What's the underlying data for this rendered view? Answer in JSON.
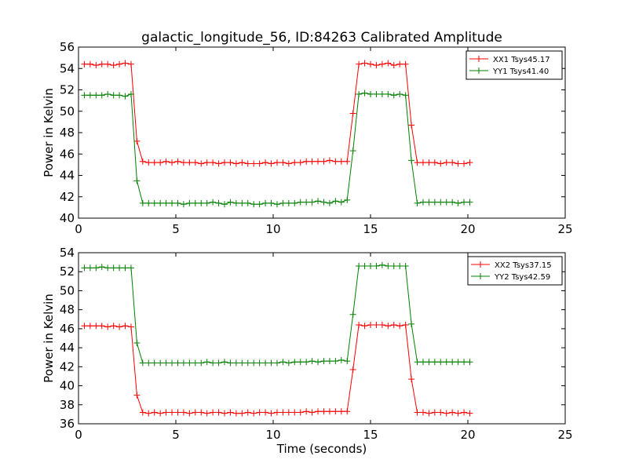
{
  "chart_data": [
    {
      "type": "line",
      "title": "galactic_longitude_56, ID:84263 Calibrated Amplitude",
      "xlabel": "",
      "ylabel": "Power in Kelvin",
      "xlim": [
        0,
        25
      ],
      "ylim": [
        40,
        56
      ],
      "xticks": [
        "0",
        "5",
        "10",
        "15",
        "20",
        "25"
      ],
      "yticks": [
        "40",
        "42",
        "44",
        "46",
        "48",
        "50",
        "52",
        "54",
        "56"
      ],
      "grid": false,
      "legend_position": "top-right",
      "series": [
        {
          "name": "XX1 Tsys45.17",
          "color": "#ff0000",
          "x": [
            0.3,
            0.6,
            0.9,
            1.2,
            1.5,
            1.8,
            2.1,
            2.4,
            2.7,
            3.0,
            3.3,
            3.6,
            3.9,
            4.2,
            4.5,
            4.8,
            5.1,
            5.4,
            5.7,
            6.0,
            6.3,
            6.6,
            6.9,
            7.2,
            7.5,
            7.8,
            8.1,
            8.4,
            8.7,
            9.0,
            9.3,
            9.6,
            9.9,
            10.2,
            10.5,
            10.8,
            11.1,
            11.4,
            11.7,
            12.0,
            12.3,
            12.6,
            12.9,
            13.2,
            13.5,
            13.8,
            14.1,
            14.4,
            14.7,
            15.0,
            15.3,
            15.6,
            15.9,
            16.2,
            16.5,
            16.8,
            17.1,
            17.4,
            17.7,
            18.0,
            18.3,
            18.6,
            18.9,
            19.2,
            19.5,
            19.8,
            20.1
          ],
          "y": [
            54.4,
            54.4,
            54.3,
            54.4,
            54.4,
            54.3,
            54.4,
            54.5,
            54.4,
            47.2,
            45.3,
            45.2,
            45.2,
            45.2,
            45.3,
            45.2,
            45.3,
            45.2,
            45.2,
            45.2,
            45.1,
            45.2,
            45.2,
            45.1,
            45.2,
            45.2,
            45.1,
            45.2,
            45.1,
            45.1,
            45.1,
            45.2,
            45.1,
            45.2,
            45.2,
            45.1,
            45.2,
            45.2,
            45.3,
            45.3,
            45.3,
            45.3,
            45.4,
            45.3,
            45.3,
            45.3,
            49.8,
            54.4,
            54.5,
            54.4,
            54.3,
            54.4,
            54.5,
            54.3,
            54.4,
            54.4,
            48.7,
            45.2,
            45.2,
            45.2,
            45.2,
            45.1,
            45.2,
            45.2,
            45.1,
            45.1,
            45.2
          ]
        },
        {
          "name": "YY1 Tsys41.40",
          "color": "#008000",
          "x": [
            0.3,
            0.6,
            0.9,
            1.2,
            1.5,
            1.8,
            2.1,
            2.4,
            2.7,
            3.0,
            3.3,
            3.6,
            3.9,
            4.2,
            4.5,
            4.8,
            5.1,
            5.4,
            5.7,
            6.0,
            6.3,
            6.6,
            6.9,
            7.2,
            7.5,
            7.8,
            8.1,
            8.4,
            8.7,
            9.0,
            9.3,
            9.6,
            9.9,
            10.2,
            10.5,
            10.8,
            11.1,
            11.4,
            11.7,
            12.0,
            12.3,
            12.6,
            12.9,
            13.2,
            13.5,
            13.8,
            14.1,
            14.4,
            14.7,
            15.0,
            15.3,
            15.6,
            15.9,
            16.2,
            16.5,
            16.8,
            17.1,
            17.4,
            17.7,
            18.0,
            18.3,
            18.6,
            18.9,
            19.2,
            19.5,
            19.8,
            20.1
          ],
          "y": [
            51.5,
            51.5,
            51.5,
            51.5,
            51.6,
            51.5,
            51.5,
            51.4,
            51.6,
            43.5,
            41.4,
            41.4,
            41.4,
            41.4,
            41.4,
            41.4,
            41.4,
            41.3,
            41.4,
            41.4,
            41.4,
            41.4,
            41.5,
            41.4,
            41.3,
            41.5,
            41.4,
            41.4,
            41.4,
            41.3,
            41.3,
            41.4,
            41.4,
            41.3,
            41.4,
            41.4,
            41.4,
            41.5,
            41.5,
            41.5,
            41.6,
            41.5,
            41.4,
            41.6,
            41.5,
            41.7,
            46.3,
            51.6,
            51.7,
            51.6,
            51.6,
            51.6,
            51.6,
            51.5,
            51.6,
            51.5,
            45.4,
            41.4,
            41.5,
            41.5,
            41.5,
            41.5,
            41.5,
            41.5,
            41.4,
            41.5,
            41.5
          ]
        }
      ]
    },
    {
      "type": "line",
      "title": "",
      "xlabel": "Time (seconds)",
      "ylabel": "Power in Kelvin",
      "xlim": [
        0,
        25
      ],
      "ylim": [
        36,
        54
      ],
      "xticks": [
        "0",
        "5",
        "10",
        "15",
        "20",
        "25"
      ],
      "yticks": [
        "36",
        "38",
        "40",
        "42",
        "44",
        "46",
        "48",
        "50",
        "52",
        "54"
      ],
      "grid": false,
      "legend_position": "top-right",
      "series": [
        {
          "name": "XX2 Tsys37.15",
          "color": "#ff0000",
          "x": [
            0.3,
            0.6,
            0.9,
            1.2,
            1.5,
            1.8,
            2.1,
            2.4,
            2.7,
            3.0,
            3.3,
            3.6,
            3.9,
            4.2,
            4.5,
            4.8,
            5.1,
            5.4,
            5.7,
            6.0,
            6.3,
            6.6,
            6.9,
            7.2,
            7.5,
            7.8,
            8.1,
            8.4,
            8.7,
            9.0,
            9.3,
            9.6,
            9.9,
            10.2,
            10.5,
            10.8,
            11.1,
            11.4,
            11.7,
            12.0,
            12.3,
            12.6,
            12.9,
            13.2,
            13.5,
            13.8,
            14.1,
            14.4,
            14.7,
            15.0,
            15.3,
            15.6,
            15.9,
            16.2,
            16.5,
            16.8,
            17.1,
            17.4,
            17.7,
            18.0,
            18.3,
            18.6,
            18.9,
            19.2,
            19.5,
            19.8,
            20.1
          ],
          "y": [
            46.3,
            46.3,
            46.3,
            46.3,
            46.2,
            46.3,
            46.2,
            46.3,
            46.2,
            39.0,
            37.2,
            37.1,
            37.2,
            37.1,
            37.2,
            37.2,
            37.2,
            37.2,
            37.1,
            37.2,
            37.2,
            37.1,
            37.2,
            37.2,
            37.1,
            37.2,
            37.1,
            37.1,
            37.2,
            37.1,
            37.2,
            37.2,
            37.1,
            37.2,
            37.2,
            37.2,
            37.2,
            37.2,
            37.3,
            37.2,
            37.3,
            37.3,
            37.3,
            37.3,
            37.3,
            37.3,
            41.7,
            46.4,
            46.3,
            46.4,
            46.4,
            46.4,
            46.3,
            46.4,
            46.3,
            46.4,
            40.7,
            37.2,
            37.2,
            37.1,
            37.2,
            37.2,
            37.1,
            37.2,
            37.1,
            37.2,
            37.1
          ]
        },
        {
          "name": "YY2 Tsys42.59",
          "color": "#008000",
          "x": [
            0.3,
            0.6,
            0.9,
            1.2,
            1.5,
            1.8,
            2.1,
            2.4,
            2.7,
            3.0,
            3.3,
            3.6,
            3.9,
            4.2,
            4.5,
            4.8,
            5.1,
            5.4,
            5.7,
            6.0,
            6.3,
            6.6,
            6.9,
            7.2,
            7.5,
            7.8,
            8.1,
            8.4,
            8.7,
            9.0,
            9.3,
            9.6,
            9.9,
            10.2,
            10.5,
            10.8,
            11.1,
            11.4,
            11.7,
            12.0,
            12.3,
            12.6,
            12.9,
            13.2,
            13.5,
            13.8,
            14.1,
            14.4,
            14.7,
            15.0,
            15.3,
            15.6,
            15.9,
            16.2,
            16.5,
            16.8,
            17.1,
            17.4,
            17.7,
            18.0,
            18.3,
            18.6,
            18.9,
            19.2,
            19.5,
            19.8,
            20.1
          ],
          "y": [
            52.4,
            52.4,
            52.4,
            52.5,
            52.4,
            52.4,
            52.4,
            52.4,
            52.4,
            44.5,
            42.4,
            42.4,
            42.4,
            42.4,
            42.4,
            42.4,
            42.4,
            42.4,
            42.4,
            42.4,
            42.4,
            42.5,
            42.4,
            42.4,
            42.5,
            42.4,
            42.4,
            42.4,
            42.4,
            42.4,
            42.4,
            42.4,
            42.4,
            42.4,
            42.5,
            42.4,
            42.5,
            42.5,
            42.5,
            42.6,
            42.5,
            42.6,
            42.6,
            42.6,
            42.7,
            42.6,
            47.5,
            52.6,
            52.6,
            52.6,
            52.6,
            52.7,
            52.6,
            52.6,
            52.6,
            52.6,
            46.5,
            42.5,
            42.5,
            42.5,
            42.5,
            42.5,
            42.5,
            42.5,
            42.5,
            42.5,
            42.5
          ]
        }
      ]
    }
  ]
}
